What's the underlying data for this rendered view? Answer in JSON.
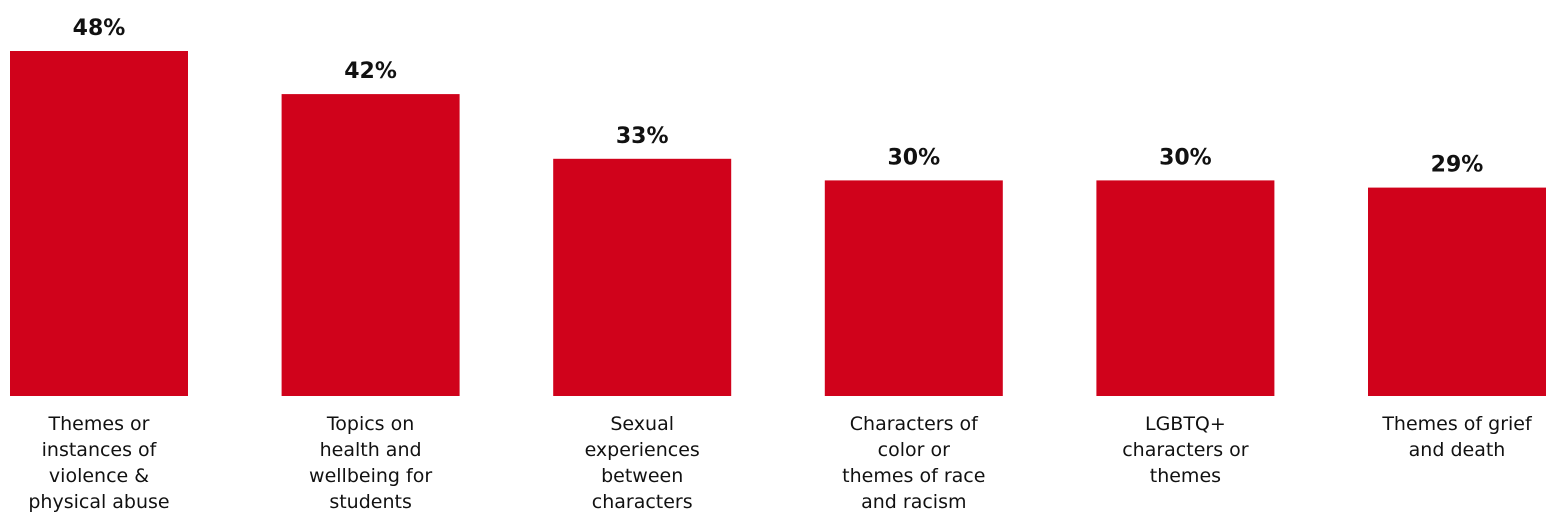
{
  "chart_data": {
    "type": "bar",
    "categories": [
      "Themes or instances of violence & physical abuse",
      "Topics on health and wellbeing for students",
      "Sexual experiences between characters",
      "Characters of color or themes of race and racism",
      "LGBTQ+ characters or themes",
      "Themes of grief and death"
    ],
    "category_lines": [
      [
        "Themes or",
        "instances of",
        "violence &",
        "physical abuse"
      ],
      [
        "Topics on",
        "health and",
        "wellbeing for",
        "students"
      ],
      [
        "Sexual",
        "experiences",
        "between",
        "characters"
      ],
      [
        "Characters of",
        "color or",
        "themes of race",
        "and racism"
      ],
      [
        "LGBTQ+",
        "characters or",
        "themes"
      ],
      [
        "Themes of grief",
        "and death"
      ]
    ],
    "values": [
      48,
      42,
      33,
      30,
      30,
      29
    ],
    "value_labels": [
      "48%",
      "42%",
      "33%",
      "30%",
      "30%",
      "29%"
    ],
    "ylim": [
      0,
      48
    ],
    "grid": false,
    "bar_color": "#d0021b"
  }
}
